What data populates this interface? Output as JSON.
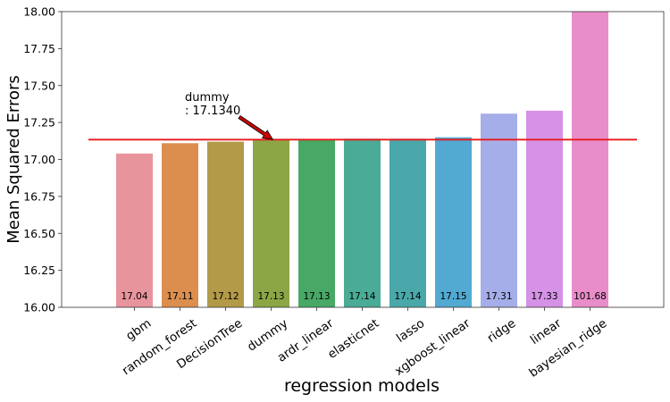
{
  "chart_data": {
    "type": "bar",
    "title": "",
    "xlabel": "regression models",
    "ylabel": "Mean Squared Errors",
    "ylim": [
      16.0,
      18.0
    ],
    "yticks": [
      "16.00",
      "16.25",
      "16.50",
      "16.75",
      "17.00",
      "17.25",
      "17.50",
      "17.75",
      "18.00"
    ],
    "categories": [
      "gbm",
      "random_forest",
      "DecisionTree",
      "dummy",
      "ardr_linear",
      "elasticnet",
      "lasso",
      "xgboost_linear",
      "ridge",
      "linear",
      "bayesian_ridge"
    ],
    "values": [
      17.04,
      17.11,
      17.12,
      17.13,
      17.13,
      17.14,
      17.14,
      17.15,
      17.31,
      17.33,
      101.68
    ],
    "value_labels": [
      "17.04",
      "17.11",
      "17.12",
      "17.13",
      "17.13",
      "17.14",
      "17.14",
      "17.15",
      "17.31",
      "17.33",
      "101.68"
    ],
    "colors": [
      "#e8949c",
      "#dc8e4e",
      "#b29a48",
      "#8da645",
      "#48a866",
      "#4aab96",
      "#4ba8aa",
      "#52a9d2",
      "#a6aee9",
      "#d592e6",
      "#e88dc9"
    ],
    "reference_line": {
      "value": 17.134,
      "color": "#e8191c"
    },
    "annotation": {
      "line1": "dummy",
      "line2": ": 17.1340",
      "arrow_color": "#cc0000"
    },
    "grid": false,
    "legend": "none"
  }
}
